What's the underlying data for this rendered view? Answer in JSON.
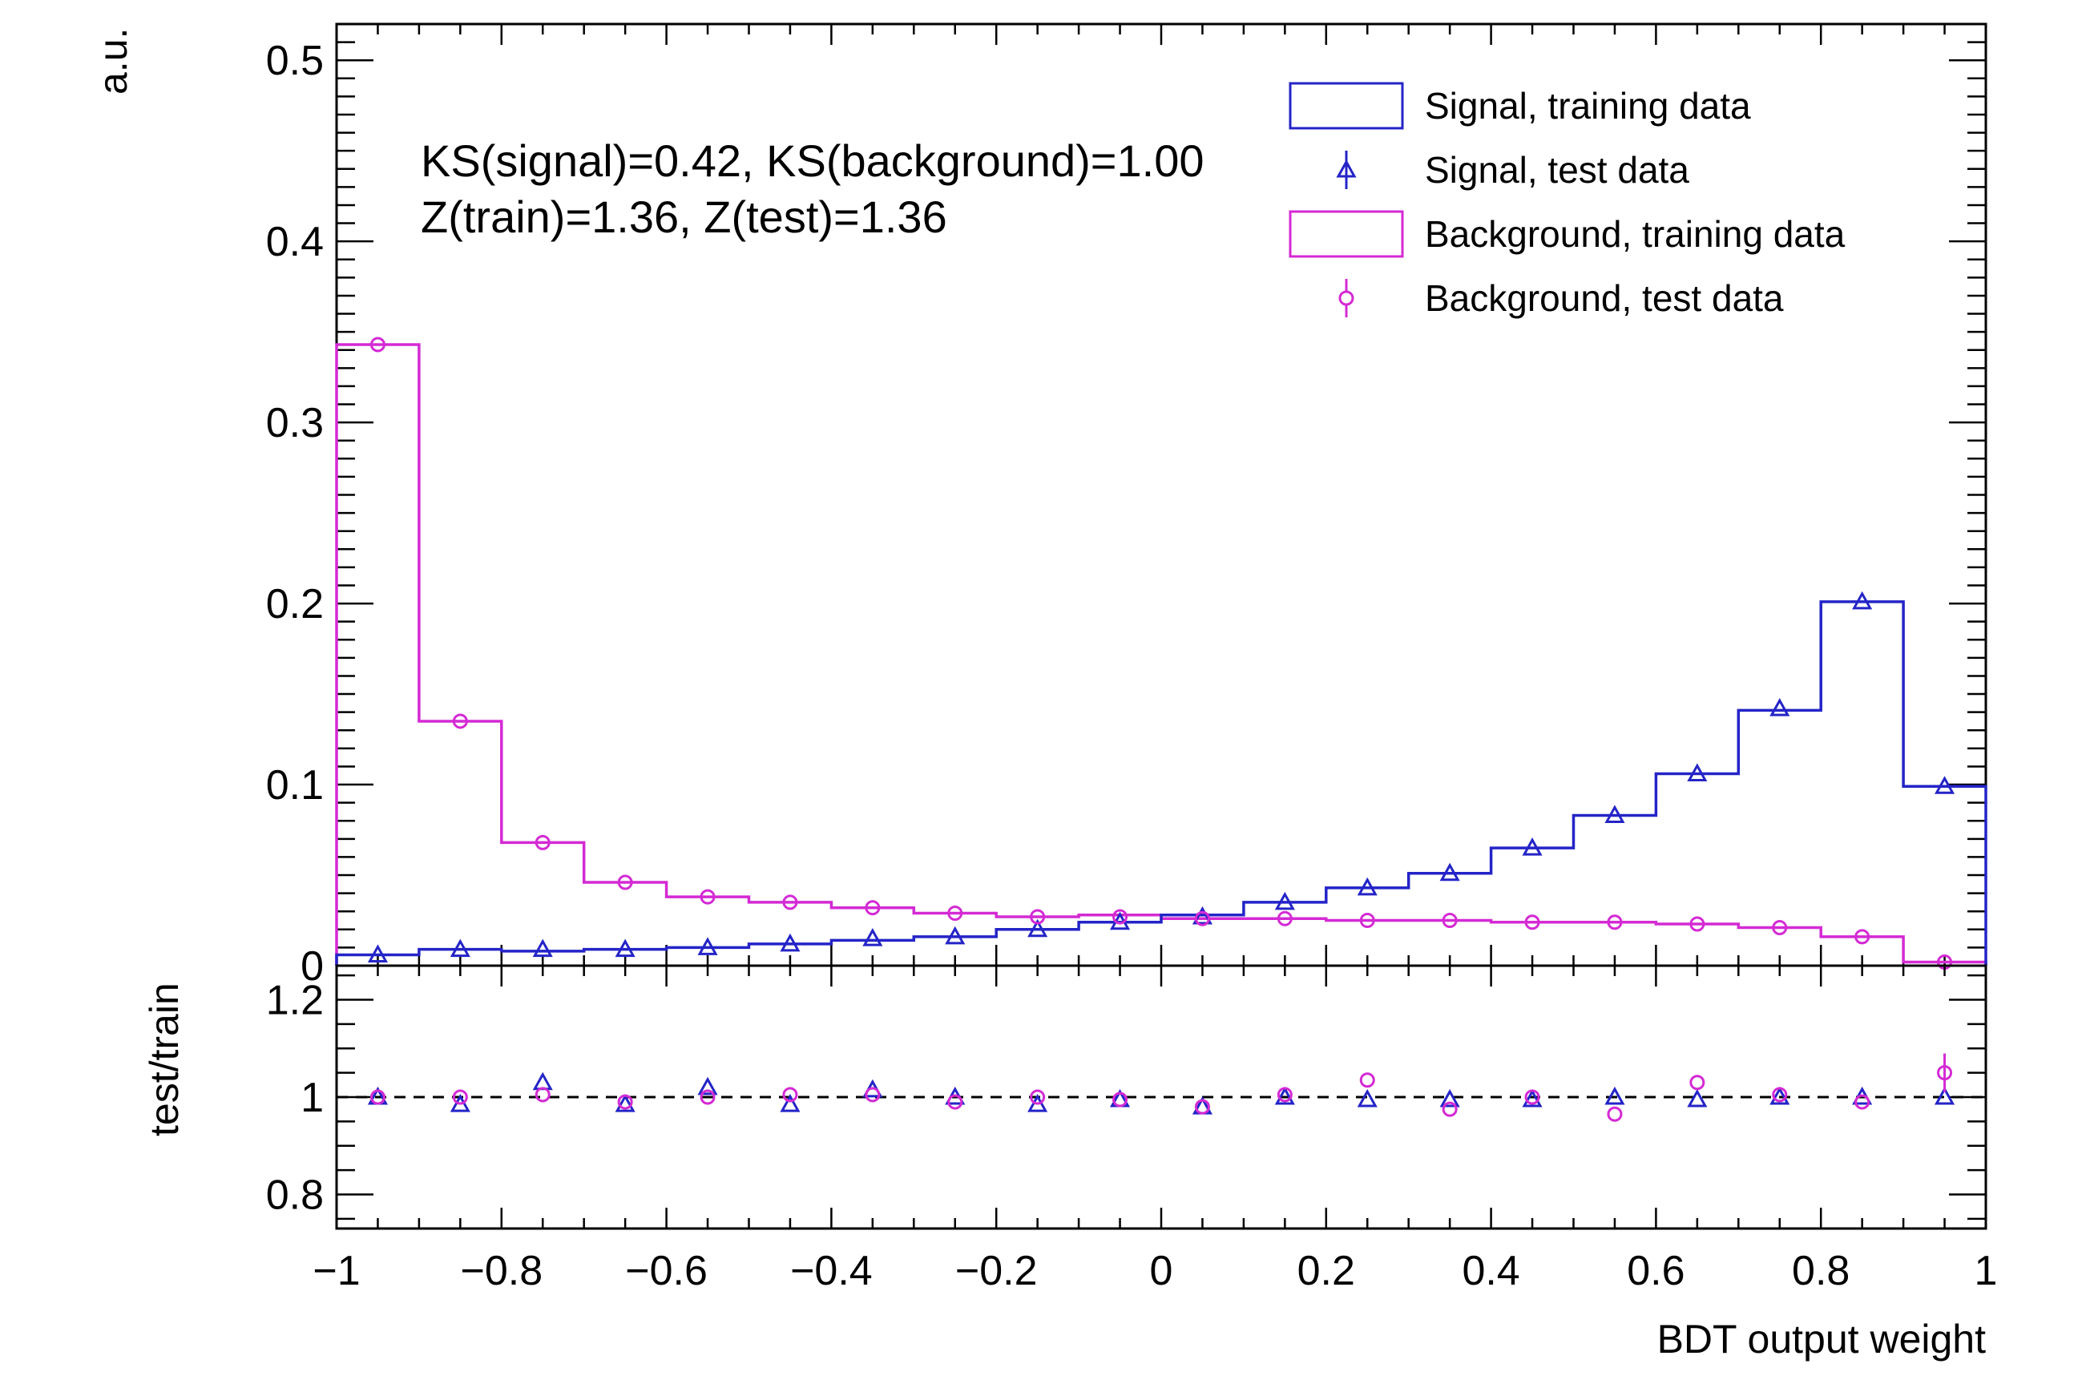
{
  "colors": {
    "signal": "#2424c8",
    "background": "#d42ad4",
    "axis": "#000000",
    "reference": "#000000"
  },
  "annotations": {
    "ks": "KS(signal)=0.42, KS(background)=1.00",
    "z": "Z(train)=1.36, Z(test)=1.36"
  },
  "legend": {
    "placement": "top-right",
    "items": [
      {
        "label": "Signal, training data",
        "style": "box",
        "series": "signal"
      },
      {
        "label": "Signal, test data",
        "style": "triangle-marker",
        "series": "signal"
      },
      {
        "label": "Background, training data",
        "style": "box",
        "series": "background"
      },
      {
        "label": "Background, test data",
        "style": "circle-marker",
        "series": "background"
      }
    ]
  },
  "chart_data": [
    {
      "type": "histogram",
      "panel": "main",
      "ylabel": "a.u.",
      "xlim": [
        -1,
        1
      ],
      "ylim": [
        0,
        0.52
      ],
      "y_ticks": [
        "0",
        "0.1",
        "0.2",
        "0.3",
        "0.4",
        "0.5"
      ],
      "bin_edges": [
        -1,
        -0.9,
        -0.8,
        -0.7,
        -0.6,
        -0.5,
        -0.4,
        -0.3,
        -0.2,
        -0.1,
        0,
        0.1,
        0.2,
        0.3,
        0.4,
        0.5,
        0.6,
        0.7,
        0.8,
        0.9,
        1
      ],
      "bin_centers": [
        -0.95,
        -0.85,
        -0.75,
        -0.65,
        -0.55,
        -0.45,
        -0.35,
        -0.25,
        -0.15,
        -0.05,
        0.05,
        0.15,
        0.25,
        0.35,
        0.45,
        0.55,
        0.65,
        0.75,
        0.85,
        0.95
      ],
      "series": [
        {
          "name": "Signal, training data",
          "kind": "step",
          "values": [
            0.006,
            0.009,
            0.008,
            0.009,
            0.01,
            0.012,
            0.014,
            0.016,
            0.02,
            0.024,
            0.028,
            0.035,
            0.043,
            0.051,
            0.065,
            0.083,
            0.106,
            0.141,
            0.201,
            0.099
          ]
        },
        {
          "name": "Signal, test data",
          "kind": "points",
          "values": [
            0.006,
            0.009,
            0.009,
            0.009,
            0.01,
            0.012,
            0.015,
            0.016,
            0.02,
            0.024,
            0.027,
            0.035,
            0.043,
            0.051,
            0.065,
            0.083,
            0.106,
            0.142,
            0.201,
            0.099
          ]
        },
        {
          "name": "Background, training data",
          "kind": "step",
          "values": [
            0.343,
            0.135,
            0.068,
            0.046,
            0.038,
            0.035,
            0.032,
            0.029,
            0.027,
            0.028,
            0.026,
            0.026,
            0.025,
            0.025,
            0.024,
            0.024,
            0.023,
            0.021,
            0.016,
            0.002
          ]
        },
        {
          "name": "Background, test data",
          "kind": "points",
          "values": [
            0.343,
            0.135,
            0.068,
            0.046,
            0.038,
            0.035,
            0.032,
            0.029,
            0.027,
            0.027,
            0.026,
            0.026,
            0.025,
            0.025,
            0.024,
            0.024,
            0.023,
            0.021,
            0.016,
            0.002
          ]
        }
      ]
    },
    {
      "type": "scatter",
      "panel": "ratio",
      "xlabel": "BDT output weight",
      "ylabel": "test/train",
      "xlim": [
        -1,
        1
      ],
      "ylim": [
        0.73,
        1.27
      ],
      "x_ticks": [
        "−1",
        "−0.8",
        "−0.6",
        "−0.4",
        "−0.2",
        "0",
        "0.2",
        "0.4",
        "0.6",
        "0.8",
        "1"
      ],
      "y_ticks": [
        "0.8",
        "1",
        "1.2"
      ],
      "reference_line": 1.0,
      "x": [
        -0.95,
        -0.85,
        -0.75,
        -0.65,
        -0.55,
        -0.45,
        -0.35,
        -0.25,
        -0.15,
        -0.05,
        0.05,
        0.15,
        0.25,
        0.35,
        0.45,
        0.55,
        0.65,
        0.75,
        0.85,
        0.95
      ],
      "series": [
        {
          "name": "Signal, test data",
          "marker": "triangle",
          "values": [
            1.0,
            0.985,
            1.03,
            0.985,
            1.02,
            0.985,
            1.015,
            1.0,
            0.985,
            0.995,
            0.98,
            1.0,
            0.995,
            0.995,
            0.995,
            1.0,
            0.995,
            1.0,
            1.0,
            1.0
          ]
        },
        {
          "name": "Background, test data",
          "marker": "circle",
          "values": [
            1.0,
            1.0,
            1.005,
            0.99,
            1.0,
            1.005,
            1.005,
            0.99,
            1.0,
            0.995,
            0.98,
            1.005,
            1.035,
            0.975,
            1.0,
            0.965,
            1.03,
            1.005,
            0.99,
            1.05
          ]
        }
      ]
    }
  ]
}
